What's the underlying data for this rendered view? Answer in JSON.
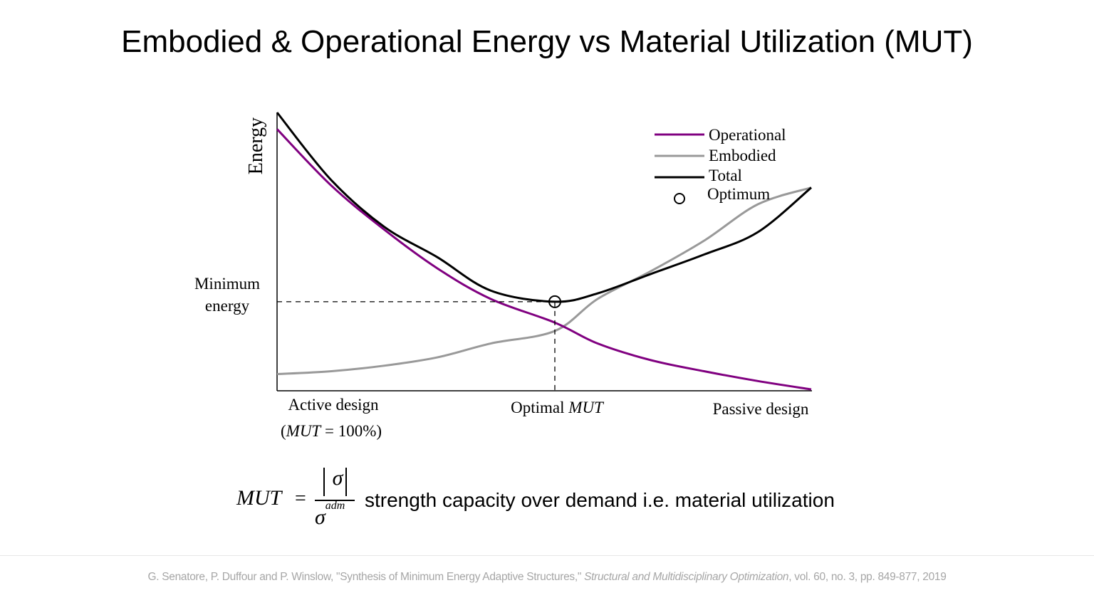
{
  "page": {
    "title": "Embodied & Operational Energy vs Material Utilization (MUT)"
  },
  "chart_data": {
    "type": "line",
    "ylabel": "Energy",
    "xlim": [
      0,
      1
    ],
    "ylim": [
      0,
      1
    ],
    "series": [
      {
        "name": "Operational",
        "color": "#800080",
        "x": [
          0.0,
          0.1,
          0.2,
          0.3,
          0.4,
          0.52,
          0.6,
          0.7,
          0.8,
          0.9,
          1.0
        ],
        "y": [
          0.94,
          0.74,
          0.58,
          0.44,
          0.33,
          0.245,
          0.17,
          0.11,
          0.07,
          0.035,
          0.005
        ]
      },
      {
        "name": "Embodied",
        "color": "#999999",
        "x": [
          0.0,
          0.1,
          0.2,
          0.3,
          0.4,
          0.52,
          0.6,
          0.7,
          0.8,
          0.9,
          1.0
        ],
        "y": [
          0.06,
          0.07,
          0.09,
          0.12,
          0.17,
          0.215,
          0.33,
          0.43,
          0.54,
          0.67,
          0.73
        ]
      },
      {
        "name": "Total",
        "color": "#000000",
        "x": [
          0.0,
          0.1,
          0.2,
          0.3,
          0.4,
          0.52,
          0.6,
          0.7,
          0.8,
          0.9,
          1.0
        ],
        "y": [
          1.0,
          0.76,
          0.59,
          0.48,
          0.36,
          0.32,
          0.35,
          0.42,
          0.49,
          0.57,
          0.73
        ]
      }
    ],
    "optimum": {
      "name": "Optimum",
      "x": 0.52,
      "y": 0.32
    },
    "legend": {
      "position": "top-right"
    },
    "grid": false,
    "annotations": {
      "y_marker": [
        "Minimum",
        "energy"
      ],
      "x_left": [
        "Active design",
        "(",
        "MUT",
        " = 100%)"
      ],
      "x_mid": [
        "Optimal ",
        "MUT"
      ],
      "x_right": "Passive design"
    }
  },
  "formula": {
    "lhs": "MUT",
    "eq": "=",
    "numerator": "σ",
    "denominator": "σ",
    "denominator_sup": "adm",
    "description": "strength capacity over demand i.e. material utilization"
  },
  "citation": {
    "authors": "G. Senatore, P. Duffour and P. Winslow, \"Synthesis of Minimum Energy Adaptive Structures,\" ",
    "journal": "Structural and Multidisciplinary Optimization",
    "details": ", vol. 60, no. 3, pp. 849-877, 2019"
  }
}
